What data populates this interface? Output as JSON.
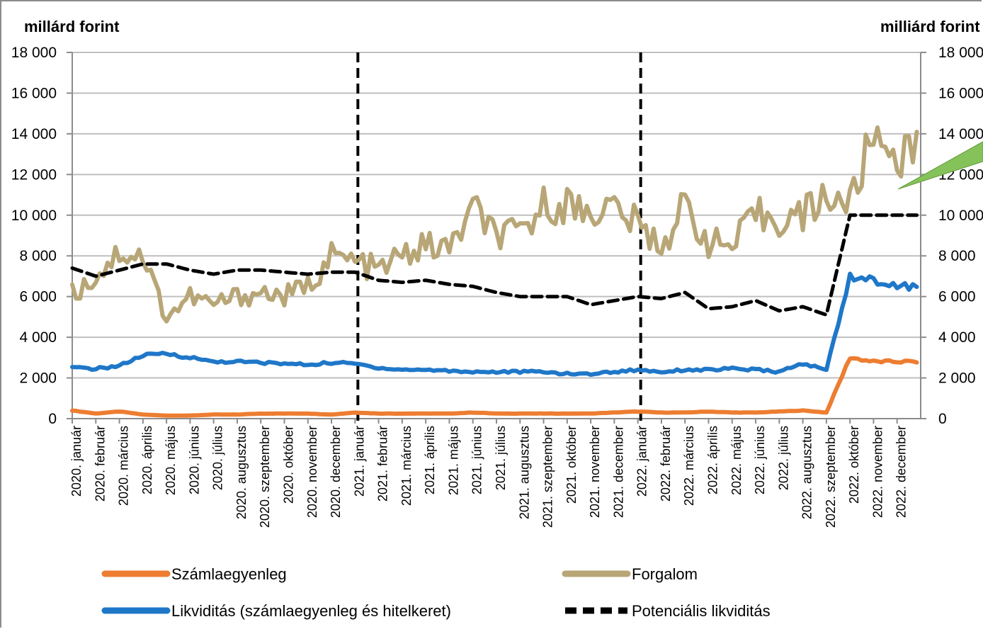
{
  "chart_data": {
    "type": "line",
    "left_axis_label": "millárd forint",
    "right_axis_label": "milliárd forint",
    "ylim": [
      0,
      18000
    ],
    "y_ticks": [
      0,
      2000,
      4000,
      6000,
      8000,
      10000,
      12000,
      14000,
      16000,
      18000
    ],
    "y_tick_labels": [
      "0",
      "2 000",
      "4 000",
      "6 000",
      "8 000",
      "10 000",
      "12 000",
      "14 000",
      "16 000",
      "18 000"
    ],
    "right_tick_labels": [
      "0",
      "2 000",
      "4 000",
      "6 000",
      "8 000",
      "10 000",
      "12 000",
      "14 000",
      "16 000",
      "18 000"
    ],
    "categories": [
      "2020. január",
      "2020. február",
      "2020. március",
      "2020. április",
      "2020. május",
      "2020. június",
      "2020. július",
      "2020. augusztus",
      "2020. szeptember",
      "2020. október",
      "2020. november",
      "2020. december",
      "2021. január",
      "2021. február",
      "2021. március",
      "2021. április",
      "2021. május",
      "2021. június",
      "2021. július",
      "2021. augusztus",
      "2021. szeptember",
      "2021. október",
      "2021. november",
      "2021. december",
      "2022. január",
      "2022. február",
      "2022. március",
      "2022. április",
      "2022. május",
      "2022. június",
      "2022. július",
      "2022. augusztus",
      "2022. szeptember",
      "2022. október",
      "2022. november",
      "2022. december"
    ],
    "vertical_dashed_lines_at": [
      "2021. január",
      "2022. január"
    ],
    "grid": true,
    "legend_position": "bottom",
    "series": [
      {
        "name": "Számlaegyenleg",
        "color": "#ed7d31",
        "style": "solid",
        "values": [
          400,
          250,
          350,
          200,
          150,
          150,
          200,
          200,
          250,
          250,
          250,
          200,
          300,
          250,
          250,
          250,
          250,
          300,
          250,
          250,
          250,
          250,
          250,
          300,
          350,
          300,
          300,
          350,
          300,
          300,
          350,
          400,
          300,
          3000,
          2800,
          2800
        ]
      },
      {
        "name": "Forgalom",
        "color": "#b8a677",
        "style": "solid",
        "values": [
          6100,
          7000,
          8200,
          8000,
          5000,
          6000,
          5600,
          6000,
          6200,
          6000,
          6500,
          8000,
          7700,
          7300,
          8000,
          8500,
          8300,
          10300,
          9000,
          9000,
          10500,
          10500,
          10200,
          10400,
          9500,
          8500,
          10500,
          8700,
          8400,
          10000,
          9800,
          10000,
          11000,
          10500,
          14000,
          13000
        ]
      },
      {
        "name": "Likviditás (számlaegyenleg és hitelkeret)",
        "color": "#1f77c8",
        "style": "solid",
        "values": [
          2500,
          2450,
          2600,
          3100,
          3200,
          3000,
          2800,
          2800,
          2750,
          2700,
          2650,
          2750,
          2700,
          2500,
          2400,
          2400,
          2350,
          2300,
          2300,
          2300,
          2300,
          2200,
          2200,
          2300,
          2400,
          2300,
          2400,
          2400,
          2450,
          2400,
          2300,
          2700,
          2400,
          7000,
          6800,
          6500
        ]
      },
      {
        "name": "Potenciális likviditás",
        "color": "#000000",
        "style": "dashed",
        "values": [
          7400,
          7000,
          7300,
          7600,
          7600,
          7300,
          7100,
          7300,
          7300,
          7200,
          7100,
          7200,
          7200,
          6800,
          6700,
          6800,
          6600,
          6500,
          6200,
          6000,
          6000,
          6000,
          5600,
          5800,
          6000,
          5900,
          6200,
          5400,
          5500,
          5800,
          5300,
          5500,
          5100,
          10000,
          10000,
          10000
        ]
      }
    ]
  },
  "colors": {
    "grid": "#bfbfbf",
    "axis": "#8c8c8c",
    "arrow": "#7fbf4d"
  }
}
